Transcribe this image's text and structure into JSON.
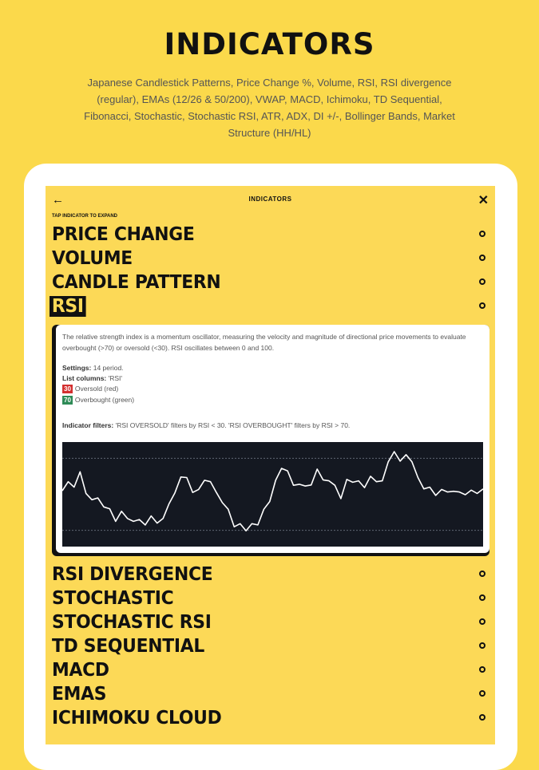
{
  "hero": {
    "title": "INDICATORS",
    "subtitle": "Japanese Candlestick Patterns, Price Change %, Volume, RSI, RSI divergence (regular), EMAs (12/26 & 50/200), VWAP, MACD, Ichimoku, TD Sequential, Fibonacci, Stochastic, Stochastic RSI, ATR, ADX, DI +/-, Bollinger Bands, Market Structure (HH/HL)"
  },
  "screen": {
    "title": "INDICATORS",
    "back_icon": "arrow-left-icon",
    "close_icon": "close-icon",
    "hint": "TAP INDICATOR TO EXPAND",
    "items_before": [
      {
        "label": "PRICE CHANGE"
      },
      {
        "label": "VOLUME"
      },
      {
        "label": "CANDLE PATTERN"
      },
      {
        "label": "RSI"
      }
    ],
    "items_after": [
      {
        "label": "RSI DIVERGENCE"
      },
      {
        "label": "STOCHASTIC"
      },
      {
        "label": "STOCHASTIC RSI"
      },
      {
        "label": "TD SEQUENTIAL"
      },
      {
        "label": "MACD"
      },
      {
        "label": "EMAS"
      },
      {
        "label": "ICHIMOKU CLOUD"
      }
    ],
    "expanded": {
      "description": "The relative strength index is a momentum oscillator, measuring the velocity and magnitude of directional price movements to evaluate overbought (>70) or oversold (<30). RSI oscillates between 0 and 100.",
      "settings_label": "Settings:",
      "settings_value": " 14 period.",
      "columns_label": "List columns:",
      "columns_value": " 'RSI'",
      "oversold_badge": "30",
      "oversold_text": "Oversold (red)",
      "overbought_badge": "70",
      "overbought_text": "Overbought (green)",
      "filters_label": "Indicator filters:",
      "filters_value": " 'RSI OVERSOLD' filters by RSI < 30. 'RSI OVERBOUGHT' filters by RSI > 70."
    }
  },
  "colors": {
    "background": "#fbd94b",
    "screen": "#fcd957",
    "oversold": "#d32f2f",
    "overbought": "#2e8b57",
    "chart_bg": "#141821",
    "line": "#ffffff"
  },
  "chart_data": {
    "type": "line",
    "ylim": [
      21,
      79
    ],
    "reference_lines": [
      70,
      30
    ],
    "grid": false,
    "values": [
      52,
      57,
      54,
      62.5,
      50.5,
      47,
      48,
      43,
      42,
      35,
      40.6,
      36.6,
      35,
      36,
      33,
      38,
      34,
      36.6,
      44.7,
      50.8,
      59.6,
      59.3,
      51,
      52.7,
      57.8,
      57,
      51,
      45.4,
      41.7,
      32,
      33.7,
      29.7,
      33.7,
      33,
      41.7,
      46,
      57.8,
      64.4,
      63,
      55,
      55.6,
      54.6,
      55.2,
      64,
      58,
      57.5,
      55,
      47.6,
      58.3,
      56.7,
      57.5,
      53.7,
      60,
      57,
      57.5,
      68,
      73.7,
      68.4,
      72,
      68,
      59.3,
      53,
      54,
      49.4,
      52.7,
      51.3,
      51.7,
      51.3,
      49.8,
      52.3,
      50.5,
      53
    ]
  }
}
